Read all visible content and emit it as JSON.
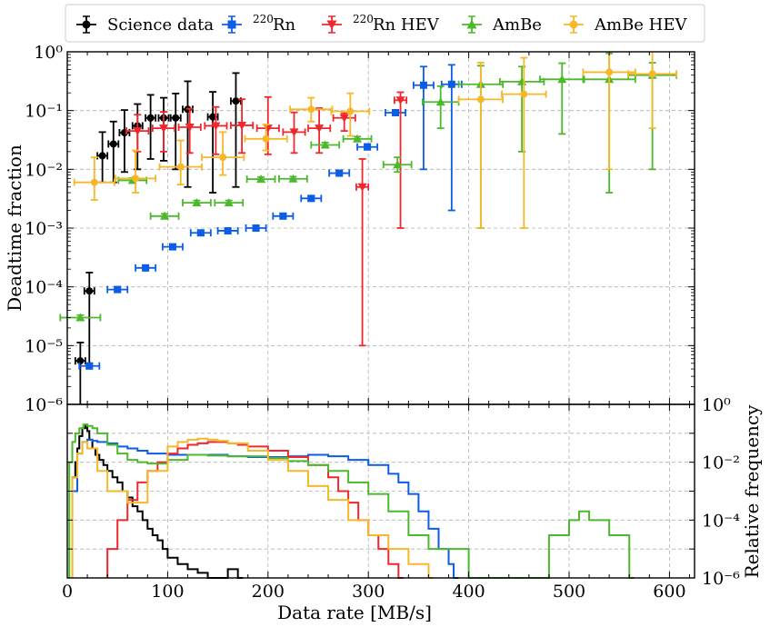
{
  "chart_data": [
    {
      "type": "scatter",
      "panel": "top",
      "ylabel": "Deadtime fraction",
      "yscale": "log",
      "ylim": [
        1e-06,
        1
      ],
      "xlim": [
        0,
        625
      ],
      "y_tick_labels": [
        "10⁻⁶",
        "10⁻⁵",
        "10⁻⁴",
        "10⁻³",
        "10⁻²",
        "10⁻¹",
        "10⁰"
      ],
      "grid": true,
      "legend": "top (above plot)",
      "series": [
        {
          "name": "Science data",
          "superscript": "",
          "label": "Science data",
          "color": "#000000",
          "marker": "circle",
          "x": [
            13,
            22,
            35,
            46,
            57,
            70,
            83,
            96,
            108,
            120,
            145,
            168
          ],
          "xerr": [
            5,
            5,
            5,
            5,
            5,
            5,
            5,
            5,
            5,
            5,
            5,
            5
          ],
          "y": [
            5.5e-06,
            8.5e-05,
            0.017,
            0.027,
            0.042,
            0.055,
            0.075,
            0.075,
            0.075,
            0.105,
            0.078,
            0.145
          ],
          "yerr_lo": [
            5.3e-06,
            8e-05,
            0.011,
            0.021,
            0.033,
            0.045,
            0.06,
            0.061,
            0.065,
            0.1,
            0.074,
            0.14
          ],
          "yerr_hi": [
            5.8e-06,
            9e-05,
            0.026,
            0.038,
            0.06,
            0.074,
            0.11,
            0.09,
            0.12,
            0.21,
            0.13,
            0.29
          ]
        },
        {
          "name": "220Rn",
          "superscript": "220",
          "label": "Rn",
          "color": "#0b5de5",
          "marker": "square",
          "x": [
            22,
            50,
            78,
            105,
            133,
            160,
            188,
            215,
            243,
            271,
            299,
            327,
            355,
            383
          ],
          "xerr": [
            10,
            10,
            10,
            10,
            10,
            10,
            10,
            10,
            10,
            10,
            10,
            10,
            10,
            10
          ],
          "y": [
            4.5e-06,
            9e-05,
            0.00021,
            0.00048,
            0.00083,
            0.0009,
            0.001,
            0.0016,
            0.0032,
            0.0086,
            0.024,
            0.092,
            0.27,
            0.28
          ],
          "yerr_lo": [
            4.5e-07,
            9e-06,
            2e-05,
            4.5e-05,
            8e-05,
            9e-05,
            0.0001,
            0.00015,
            0.0003,
            0.0008,
            0.0023,
            0.0088,
            0.26,
            0.278
          ],
          "yerr_hi": [
            5e-07,
            1e-05,
            2.2e-05,
            5e-05,
            8.5e-05,
            9.5e-05,
            0.0001,
            0.00016,
            0.00032,
            0.001,
            0.003,
            0.01,
            0.29,
            0.32
          ]
        },
        {
          "name": "220Rn HEV",
          "superscript": "220",
          "label": "Rn HEV",
          "color": "#f0272c",
          "marker": "triangle-down",
          "x": [
            70,
            96,
            122,
            148,
            174,
            200,
            226,
            251,
            276,
            294,
            332
          ],
          "xerr": [
            11,
            11,
            11,
            11,
            11,
            11,
            11,
            11,
            11,
            6,
            6
          ],
          "y": [
            0.045,
            0.05,
            0.052,
            0.055,
            0.056,
            0.05,
            0.043,
            0.05,
            0.075,
            0.005,
            0.15
          ],
          "yerr_lo": [
            0.025,
            0.03,
            0.033,
            0.037,
            0.037,
            0.032,
            0.024,
            0.031,
            0.03,
            0.00499,
            0.149
          ],
          "yerr_hi": [
            0.04,
            0.045,
            0.055,
            0.06,
            0.1,
            0.12,
            0.05,
            0.06,
            0.015,
            0.01,
            0.055
          ]
        },
        {
          "name": "AmBe",
          "superscript": "",
          "label": "AmBe",
          "color": "#4cb82c",
          "marker": "triangle-up",
          "x": [
            13,
            65,
            97,
            129,
            161,
            193,
            225,
            257,
            289,
            329,
            372,
            412,
            453,
            493,
            540,
            583
          ],
          "xerr": [
            20,
            14,
            14,
            14,
            14,
            14,
            14,
            14,
            14,
            14,
            18,
            22,
            22,
            22,
            26,
            24
          ],
          "y": [
            3e-05,
            0.0065,
            0.0016,
            0.0027,
            0.0027,
            0.0068,
            0.0069,
            0.026,
            0.033,
            0.012,
            0.14,
            0.28,
            0.31,
            0.34,
            0.34,
            0.4
          ],
          "yerr_lo": [
            3e-06,
            0.0006,
            0.00015,
            0.00025,
            0.00025,
            0.0006,
            0.0006,
            0.0025,
            0.003,
            0.003,
            0.09,
            0.279,
            0.29,
            0.3,
            0.336,
            0.39
          ],
          "yerr_hi": [
            3e-06,
            0.0006,
            0.00015,
            0.00025,
            0.00025,
            0.0006,
            0.0006,
            0.0025,
            0.003,
            0.004,
            0.12,
            0.3,
            0.25,
            0.3,
            0.6,
            0.25
          ]
        },
        {
          "name": "AmBe HEV",
          "superscript": "",
          "label": "AmBe HEV",
          "color": "#f6b728",
          "marker": "circle",
          "x": [
            27,
            68,
            113,
            155,
            198,
            243,
            282,
            412,
            455,
            540,
            583
          ],
          "xerr": [
            20,
            20,
            21,
            21,
            21,
            21,
            19,
            22,
            22,
            26,
            24
          ],
          "y": [
            0.006,
            0.007,
            0.011,
            0.016,
            0.033,
            0.105,
            0.097,
            0.155,
            0.19,
            0.45,
            0.42
          ],
          "yerr_lo": [
            0.003,
            0.003,
            0.0055,
            0.008,
            0.012,
            0.04,
            0.06,
            0.154,
            0.189,
            0.44,
            0.37
          ],
          "yerr_hi": [
            0.01,
            0.014,
            0.02,
            0.027,
            0.025,
            0.06,
            0.1,
            0.5,
            0.6,
            0.6,
            0.55
          ]
        }
      ]
    },
    {
      "type": "line",
      "panel": "bottom",
      "xlabel": "Data rate [MB/s]",
      "ylabel": "Relative frequency",
      "yscale": "log",
      "ylim": [
        1e-06,
        1
      ],
      "xlim": [
        0,
        625
      ],
      "x_tick_labels": [
        "0",
        "100",
        "200",
        "300",
        "400",
        "500",
        "600"
      ],
      "y_tick_labels": [
        "10⁻⁶",
        "10⁻⁴",
        "10⁻²",
        "10⁰"
      ],
      "series": [
        {
          "name": "Science data",
          "color": "#000000",
          "x": [
            5,
            8,
            10,
            12,
            15,
            18,
            20,
            22,
            25,
            28,
            32,
            36,
            40,
            45,
            50,
            55,
            60,
            65,
            70,
            75,
            80,
            85,
            90,
            95,
            100,
            110,
            120,
            130,
            140,
            150,
            160,
            170
          ],
          "y": [
            0.003,
            0.01,
            0.03,
            0.08,
            0.15,
            0.2,
            0.12,
            0.06,
            0.03,
            0.018,
            0.012,
            0.008,
            0.005,
            0.003,
            0.002,
            0.001,
            0.0006,
            0.0003,
            0.0002,
            0.0001,
            5e-05,
            3e-05,
            2e-05,
            1e-05,
            5e-06,
            3e-06,
            2e-06,
            1.5e-06,
            1e-06,
            1e-06,
            2e-06,
            1e-06
          ]
        },
        {
          "name": "220Rn",
          "color": "#0b5de5",
          "x": [
            5,
            10,
            15,
            20,
            25,
            30,
            40,
            50,
            60,
            70,
            80,
            100,
            120,
            140,
            160,
            180,
            200,
            220,
            240,
            260,
            280,
            300,
            320,
            330,
            340,
            350,
            360,
            370,
            380,
            385
          ],
          "y": [
            0.001,
            0.02,
            0.05,
            0.06,
            0.055,
            0.05,
            0.045,
            0.035,
            0.03,
            0.025,
            0.02,
            0.018,
            0.018,
            0.018,
            0.016,
            0.015,
            0.015,
            0.016,
            0.018,
            0.016,
            0.012,
            0.008,
            0.004,
            0.002,
            0.0008,
            0.0002,
            5e-05,
            1e-05,
            3e-06,
            1e-06
          ]
        },
        {
          "name": "220Rn HEV",
          "color": "#f0272c",
          "x": [
            40,
            50,
            60,
            70,
            80,
            90,
            100,
            110,
            120,
            130,
            140,
            150,
            160,
            170,
            180,
            200,
            220,
            240,
            260,
            270,
            280,
            290,
            300,
            310,
            320,
            330
          ],
          "y": [
            1e-05,
            0.0001,
            0.0005,
            0.002,
            0.005,
            0.01,
            0.02,
            0.03,
            0.04,
            0.045,
            0.05,
            0.05,
            0.045,
            0.04,
            0.035,
            0.025,
            0.015,
            0.008,
            0.003,
            0.001,
            0.0004,
            0.0001,
            3e-05,
            1e-05,
            3e-06,
            1e-06
          ]
        },
        {
          "name": "AmBe",
          "color": "#4cb82c",
          "x": [
            2,
            5,
            8,
            12,
            16,
            20,
            25,
            30,
            40,
            50,
            60,
            70,
            80,
            100,
            120,
            140,
            160,
            180,
            200,
            220,
            240,
            260,
            280,
            300,
            320,
            340,
            360,
            400,
            450,
            480,
            500,
            510,
            520,
            540,
            560
          ],
          "y": [
            0.01,
            0.05,
            0.1,
            0.15,
            0.2,
            0.18,
            0.15,
            0.1,
            0.04,
            0.02,
            0.012,
            0.01,
            0.009,
            0.012,
            0.018,
            0.017,
            0.016,
            0.016,
            0.014,
            0.011,
            0.008,
            0.005,
            0.002,
            0.0008,
            0.0002,
            3e-05,
            1e-05,
            1e-06,
            1e-06,
            3e-05,
            0.0001,
            0.0002,
            0.0001,
            3e-05,
            1e-06
          ]
        },
        {
          "name": "AmBe HEV",
          "color": "#f6b728",
          "x": [
            5,
            10,
            15,
            20,
            30,
            40,
            60,
            80,
            100,
            110,
            120,
            130,
            140,
            150,
            160,
            180,
            200,
            220,
            240,
            260,
            280,
            300,
            320,
            340,
            360
          ],
          "y": [
            0.003,
            0.02,
            0.05,
            0.03,
            0.005,
            0.001,
            0.0004,
            0.005,
            0.035,
            0.05,
            0.06,
            0.065,
            0.06,
            0.055,
            0.045,
            0.025,
            0.012,
            0.005,
            0.0015,
            0.0005,
            0.0001,
            3e-05,
            1e-05,
            3e-06,
            1e-06
          ]
        }
      ]
    }
  ]
}
